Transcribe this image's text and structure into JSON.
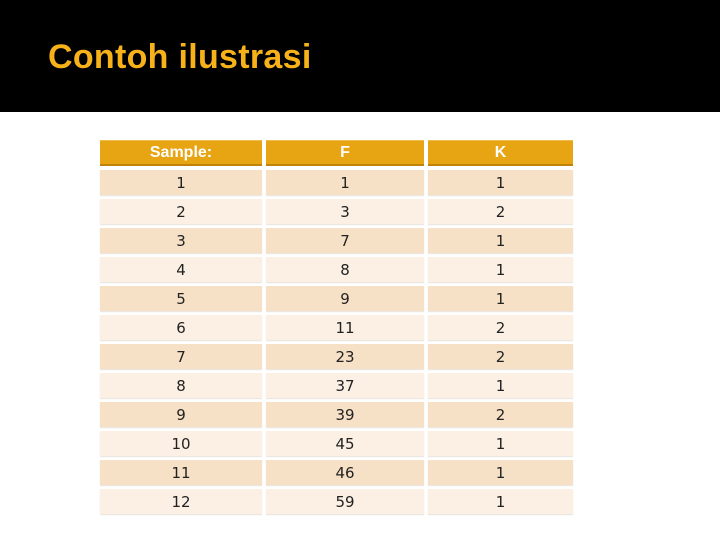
{
  "slide": {
    "title": "Contoh ilustrasi"
  },
  "table": {
    "columns": [
      "Sample:",
      "F",
      "K"
    ],
    "rows": [
      [
        "1",
        "1",
        "1"
      ],
      [
        "2",
        "3",
        "2"
      ],
      [
        "3",
        "7",
        "1"
      ],
      [
        "4",
        "8",
        "1"
      ],
      [
        "5",
        "9",
        "1"
      ],
      [
        "6",
        "11",
        "2"
      ],
      [
        "7",
        "23",
        "2"
      ],
      [
        "8",
        "37",
        "1"
      ],
      [
        "9",
        "39",
        "2"
      ],
      [
        "10",
        "45",
        "1"
      ],
      [
        "11",
        "46",
        "1"
      ],
      [
        "12",
        "59",
        "1"
      ]
    ]
  },
  "colors": {
    "band_bg": "#000000",
    "title_text": "#F7B21A",
    "header_bg": "#E8A513",
    "header_text": "#FFFFFF",
    "row_odd_bg": "#F6E0C6",
    "row_even_bg": "#FBF0E3",
    "body_text": "#222222",
    "page_bg": "#FFFFFF"
  }
}
